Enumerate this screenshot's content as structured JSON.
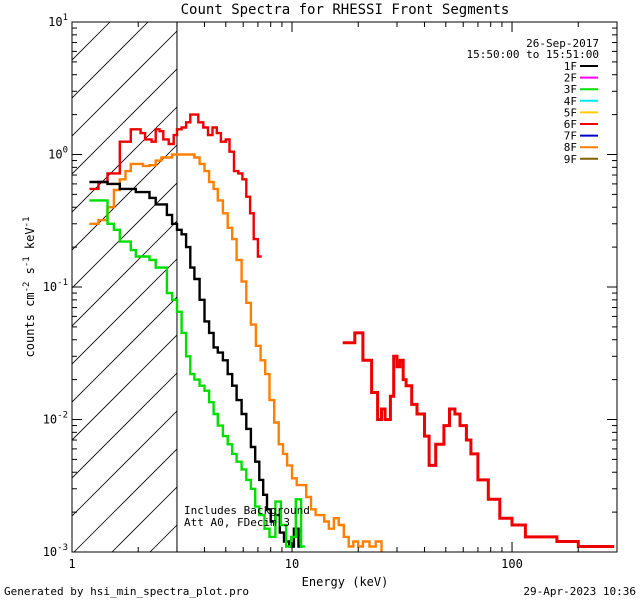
{
  "chart_data": {
    "type": "line",
    "title": "Count Spectra for RHESSI Front Segments",
    "xlabel": "Energy (keV)",
    "ylabel_parts": [
      "counts cm",
      "-2",
      " s",
      "-1",
      " keV",
      "-1"
    ],
    "x_scale": "log",
    "y_scale": "log",
    "xlim": [
      1,
      300
    ],
    "ylim": [
      0.001,
      10
    ],
    "x_ticks": [
      {
        "value": 1,
        "label": "1"
      },
      {
        "value": 10,
        "label": "10"
      },
      {
        "value": 100,
        "label": "100"
      }
    ],
    "y_ticks": [
      {
        "value": 0.001,
        "base": "10",
        "exp": "-3"
      },
      {
        "value": 0.01,
        "base": "10",
        "exp": "-2"
      },
      {
        "value": 0.1,
        "base": "10",
        "exp": "-1"
      },
      {
        "value": 1,
        "base": "10",
        "exp": "0"
      },
      {
        "value": 10,
        "base": "10",
        "exp": "1"
      }
    ],
    "hatched_region": [
      1,
      3
    ],
    "header_lines": [
      "26-Sep-2017",
      "15:50:00 to 15:51:00"
    ],
    "legend": [
      {
        "name": "1F",
        "color": "#000000"
      },
      {
        "name": "2F",
        "color": "#ff00ff"
      },
      {
        "name": "3F",
        "color": "#00dd00"
      },
      {
        "name": "4F",
        "color": "#00e5ee"
      },
      {
        "name": "5F",
        "color": "#ffcc00"
      },
      {
        "name": "6F",
        "color": "#ee0000"
      },
      {
        "name": "7F",
        "color": "#0000cc"
      },
      {
        "name": "8F",
        "color": "#ff8000"
      },
      {
        "name": "9F",
        "color": "#806000"
      }
    ],
    "annotations": [
      "Includes Background",
      "Att A0, FDecim 3"
    ],
    "series": [
      {
        "name": "6F",
        "color": "#ee0000",
        "width": 2.4,
        "points": [
          [
            1.2,
            0.55
          ],
          [
            1.32,
            0.62
          ],
          [
            1.45,
            0.72
          ],
          [
            1.55,
            0.72
          ],
          [
            1.65,
            1.25
          ],
          [
            1.75,
            1.25
          ],
          [
            1.85,
            1.55
          ],
          [
            1.95,
            1.55
          ],
          [
            2.05,
            1.45
          ],
          [
            2.15,
            1.3
          ],
          [
            2.3,
            1.25
          ],
          [
            2.4,
            1.55
          ],
          [
            2.5,
            1.5
          ],
          [
            2.6,
            1.3
          ],
          [
            2.75,
            1.2
          ],
          [
            2.9,
            1.4
          ],
          [
            3.0,
            1.55
          ],
          [
            3.15,
            1.6
          ],
          [
            3.3,
            1.75
          ],
          [
            3.45,
            2.0
          ],
          [
            3.6,
            2.0
          ],
          [
            3.75,
            1.75
          ],
          [
            3.95,
            1.6
          ],
          [
            4.15,
            1.4
          ],
          [
            4.35,
            1.6
          ],
          [
            4.55,
            1.45
          ],
          [
            4.75,
            1.25
          ],
          [
            5.0,
            1.3
          ],
          [
            5.2,
            1.05
          ],
          [
            5.45,
            0.75
          ],
          [
            5.7,
            0.72
          ],
          [
            5.95,
            0.65
          ],
          [
            6.2,
            0.48
          ],
          [
            6.45,
            0.36
          ],
          [
            6.7,
            0.23
          ],
          [
            7.0,
            0.17
          ]
        ]
      },
      {
        "name": "8F",
        "color": "#ff8000",
        "width": 2.4,
        "points": [
          [
            1.2,
            0.3
          ],
          [
            1.32,
            0.32
          ],
          [
            1.45,
            0.4
          ],
          [
            1.55,
            0.54
          ],
          [
            1.65,
            0.65
          ],
          [
            1.75,
            0.75
          ],
          [
            1.85,
            0.85
          ],
          [
            1.95,
            0.85
          ],
          [
            2.1,
            0.82
          ],
          [
            2.25,
            0.83
          ],
          [
            2.4,
            0.9
          ],
          [
            2.55,
            0.95
          ],
          [
            2.7,
            0.95
          ],
          [
            2.85,
            1.0
          ],
          [
            3.0,
            1.0
          ],
          [
            3.2,
            1.0
          ],
          [
            3.4,
            1.0
          ],
          [
            3.6,
            0.95
          ],
          [
            3.8,
            0.85
          ],
          [
            4.0,
            0.75
          ],
          [
            4.2,
            0.62
          ],
          [
            4.4,
            0.55
          ],
          [
            4.6,
            0.45
          ],
          [
            4.85,
            0.36
          ],
          [
            5.1,
            0.28
          ],
          [
            5.35,
            0.23
          ],
          [
            5.6,
            0.16
          ],
          [
            5.9,
            0.11
          ],
          [
            6.2,
            0.076
          ],
          [
            6.5,
            0.052
          ],
          [
            6.85,
            0.036
          ],
          [
            7.2,
            0.028
          ],
          [
            7.55,
            0.022
          ],
          [
            7.9,
            0.014
          ],
          [
            8.3,
            0.0095
          ],
          [
            8.7,
            0.0065
          ],
          [
            9.1,
            0.0055
          ],
          [
            9.5,
            0.0045
          ],
          [
            10.0,
            0.0036
          ],
          [
            10.5,
            0.0032
          ],
          [
            11.0,
            0.0032
          ],
          [
            11.6,
            0.0026
          ],
          [
            12.2,
            0.0021
          ],
          [
            12.8,
            0.0019
          ],
          [
            13.4,
            0.0019
          ],
          [
            14.0,
            0.0017
          ],
          [
            14.7,
            0.0015
          ],
          [
            15.5,
            0.0018
          ],
          [
            16.3,
            0.0016
          ],
          [
            17.2,
            0.0013
          ],
          [
            18.1,
            0.0011
          ],
          [
            19.0,
            0.0012
          ],
          [
            20.0,
            0.0011
          ],
          [
            21.0,
            0.0012
          ],
          [
            22.5,
            0.0011
          ],
          [
            24.0,
            0.0012
          ],
          [
            25.5,
            0.0009
          ]
        ]
      },
      {
        "name": "1F",
        "color": "#000000",
        "width": 2.4,
        "points": [
          [
            1.2,
            0.62
          ],
          [
            1.32,
            0.62
          ],
          [
            1.45,
            0.6
          ],
          [
            1.55,
            0.6
          ],
          [
            1.65,
            0.55
          ],
          [
            1.8,
            0.55
          ],
          [
            1.95,
            0.52
          ],
          [
            2.1,
            0.52
          ],
          [
            2.25,
            0.47
          ],
          [
            2.4,
            0.42
          ],
          [
            2.55,
            0.42
          ],
          [
            2.7,
            0.35
          ],
          [
            2.85,
            0.3
          ],
          [
            3.0,
            0.27
          ],
          [
            3.15,
            0.25
          ],
          [
            3.3,
            0.2
          ],
          [
            3.45,
            0.14
          ],
          [
            3.6,
            0.115
          ],
          [
            3.8,
            0.08
          ],
          [
            4.0,
            0.055
          ],
          [
            4.2,
            0.045
          ],
          [
            4.4,
            0.035
          ],
          [
            4.6,
            0.032
          ],
          [
            4.85,
            0.028
          ],
          [
            5.1,
            0.022
          ],
          [
            5.35,
            0.018
          ],
          [
            5.6,
            0.014
          ],
          [
            5.9,
            0.011
          ],
          [
            6.2,
            0.0085
          ],
          [
            6.5,
            0.0062
          ],
          [
            6.8,
            0.0048
          ],
          [
            7.1,
            0.0035
          ],
          [
            7.4,
            0.0027
          ],
          [
            7.7,
            0.0021
          ],
          [
            8.0,
            0.0017
          ],
          [
            8.4,
            0.0019
          ],
          [
            8.8,
            0.0014
          ],
          [
            9.2,
            0.0012
          ],
          [
            9.7,
            0.0011
          ],
          [
            10.2,
            0.0015
          ],
          [
            10.7,
            0.0011
          ]
        ]
      },
      {
        "name": "3F",
        "color": "#00dd00",
        "width": 2.4,
        "points": [
          [
            1.2,
            0.45
          ],
          [
            1.32,
            0.45
          ],
          [
            1.45,
            0.3
          ],
          [
            1.55,
            0.27
          ],
          [
            1.65,
            0.22
          ],
          [
            1.75,
            0.22
          ],
          [
            1.85,
            0.19
          ],
          [
            1.95,
            0.17
          ],
          [
            2.1,
            0.17
          ],
          [
            2.25,
            0.16
          ],
          [
            2.4,
            0.14
          ],
          [
            2.55,
            0.14
          ],
          [
            2.7,
            0.09
          ],
          [
            2.85,
            0.08
          ],
          [
            3.0,
            0.065
          ],
          [
            3.15,
            0.045
          ],
          [
            3.3,
            0.03
          ],
          [
            3.45,
            0.022
          ],
          [
            3.6,
            0.02
          ],
          [
            3.8,
            0.018
          ],
          [
            4.0,
            0.0165
          ],
          [
            4.2,
            0.0135
          ],
          [
            4.4,
            0.011
          ],
          [
            4.6,
            0.009
          ],
          [
            4.85,
            0.0075
          ],
          [
            5.1,
            0.0065
          ],
          [
            5.35,
            0.0055
          ],
          [
            5.6,
            0.0048
          ],
          [
            5.9,
            0.0042
          ],
          [
            6.2,
            0.0035
          ],
          [
            6.5,
            0.003
          ],
          [
            6.8,
            0.0022
          ],
          [
            7.1,
            0.0019
          ],
          [
            7.5,
            0.0015
          ],
          [
            7.9,
            0.0013
          ],
          [
            8.4,
            0.0024
          ],
          [
            8.9,
            0.0016
          ],
          [
            9.4,
            0.0011
          ],
          [
            9.9,
            0.0013
          ],
          [
            10.4,
            0.0025
          ],
          [
            11.0,
            0.0011
          ]
        ]
      },
      {
        "name": "6F-tail",
        "color": "#ee0000",
        "width": 3,
        "points": [
          [
            17.0,
            0.038
          ],
          [
            19.3,
            0.045
          ],
          [
            21.0,
            0.028
          ],
          [
            23.0,
            0.016
          ],
          [
            24.5,
            0.01
          ],
          [
            25.5,
            0.012
          ],
          [
            26.5,
            0.01
          ],
          [
            28.0,
            0.015
          ],
          [
            29.0,
            0.03
          ],
          [
            30.0,
            0.025
          ],
          [
            31.0,
            0.028
          ],
          [
            32.0,
            0.02
          ],
          [
            33.0,
            0.018
          ],
          [
            35.0,
            0.013
          ],
          [
            37.0,
            0.011
          ],
          [
            40.0,
            0.0075
          ],
          [
            42.0,
            0.0045
          ],
          [
            45.0,
            0.0065
          ],
          [
            49.0,
            0.009
          ],
          [
            52.0,
            0.012
          ],
          [
            55.0,
            0.011
          ],
          [
            58.0,
            0.009
          ],
          [
            62.0,
            0.007
          ],
          [
            65.0,
            0.0055
          ],
          [
            70.0,
            0.0035
          ],
          [
            78.0,
            0.0025
          ],
          [
            88.0,
            0.0018
          ],
          [
            100.0,
            0.0016
          ],
          [
            115.0,
            0.0013
          ],
          [
            135.0,
            0.0013
          ],
          [
            160.0,
            0.0012
          ],
          [
            200.0,
            0.0011
          ],
          [
            280.0,
            0.0011
          ]
        ]
      }
    ]
  },
  "footer": {
    "left": "Generated by hsi_min_spectra_plot.pro",
    "right": "29-Apr-2023 10:36"
  }
}
